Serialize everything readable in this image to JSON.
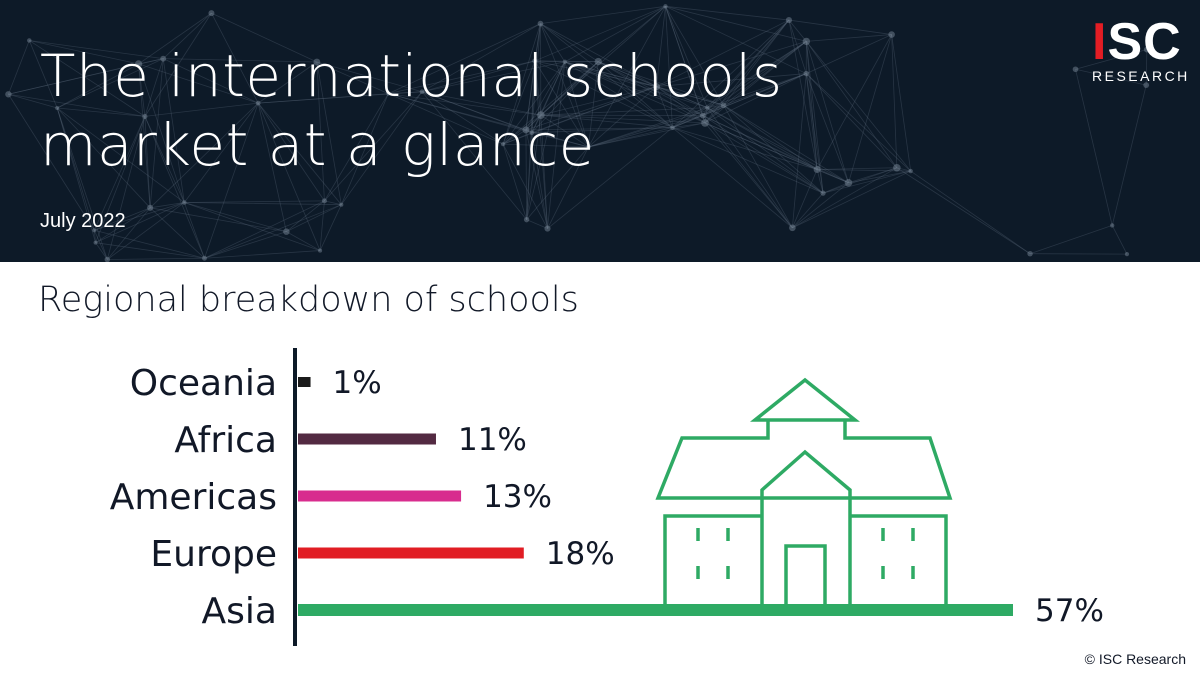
{
  "header": {
    "title_line1": "The international schools",
    "title_line2": "market at a glance",
    "date": "July 2022"
  },
  "logo": {
    "mark_red": "I",
    "mark_white": "SC",
    "sub": "RESEARCH"
  },
  "footer": {
    "copyright": "© ISC Research"
  },
  "colors": {
    "header_bg": "#0d1a28",
    "logo_red": "#e31d24",
    "school_icon": "#2eaa64",
    "axis": "#0d1a28"
  },
  "icons": [
    "school-building-icon"
  ],
  "chart_data": {
    "type": "bar",
    "orientation": "horizontal",
    "title": "Regional breakdown of schools",
    "categories": [
      "Oceania",
      "Africa",
      "Americas",
      "Europe",
      "Asia"
    ],
    "values": [
      1,
      11,
      13,
      18,
      57
    ],
    "value_labels": [
      "1%",
      "11%",
      "13%",
      "18%",
      "57%"
    ],
    "colors": [
      "#1b1b1b",
      "#532a42",
      "#d82c8e",
      "#e11d24",
      "#2eaa64"
    ],
    "unit": "%",
    "xlim": [
      0,
      57
    ],
    "grid": false,
    "legend": "none"
  }
}
